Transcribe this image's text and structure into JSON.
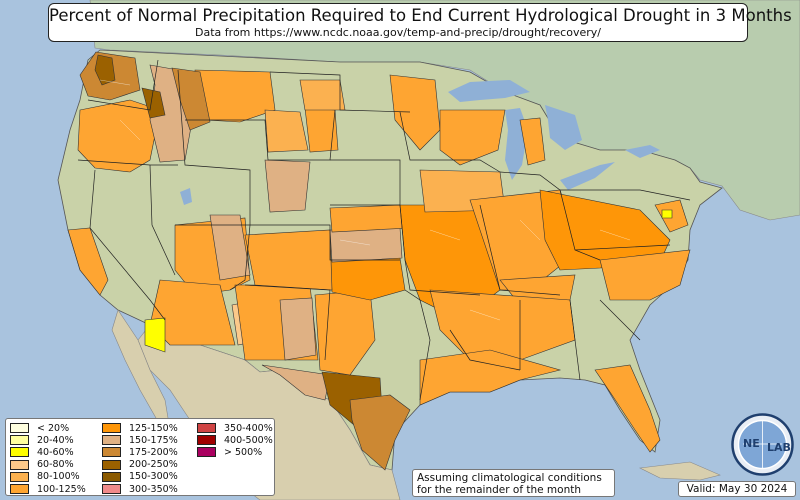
{
  "title": "Percent of Normal Precipitation Required to End Current Hydrological Drought in 3 Months",
  "subtitle": "Data from https://www.ncdc.noaa.gov/temp-and-precip/drought/recovery/",
  "legend": [
    {
      "label": "< 20%",
      "color": "#ffffe0"
    },
    {
      "label": "20-40%",
      "color": "#ffff9e"
    },
    {
      "label": "40-60%",
      "color": "#ffff00"
    },
    {
      "label": "60-80%",
      "color": "#fcc98a"
    },
    {
      "label": "80-100%",
      "color": "#fbb150"
    },
    {
      "label": "100-125%",
      "color": "#fea532"
    },
    {
      "label": "125-150%",
      "color": "#fe9608"
    },
    {
      "label": "150-175%",
      "color": "#dfb184"
    },
    {
      "label": "175-200%",
      "color": "#cc8833"
    },
    {
      "label": "200-250%",
      "color": "#9b6100"
    },
    {
      "label": "150-300%",
      "color": "#8b5a00"
    },
    {
      "label": "300-350%",
      "color": "#f08a8a"
    },
    {
      "label": "350-400%",
      "color": "#d04444"
    },
    {
      "label": "400-500%",
      "color": "#a00000"
    },
    {
      "label": "> 500%",
      "color": "#aa0060"
    }
  ],
  "note_line1": "Assuming climatological conditions",
  "note_line2": "for the remainder of the month",
  "valid": "Valid: May 30 2024",
  "logo_text_left": "NE",
  "logo_text_right": "LAB",
  "colors": {
    "ocean": "#a9c3de",
    "land": "#c9d2a8",
    "mexico": "#d8cfae",
    "canada": "#b8ccae",
    "lakes": "#8fb0d6"
  }
}
